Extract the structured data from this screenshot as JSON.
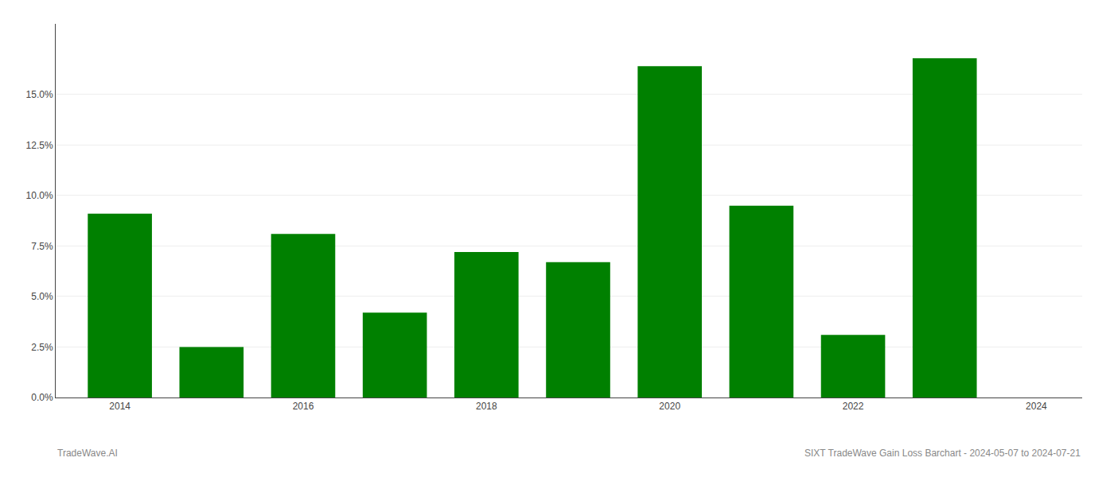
{
  "chart_data": {
    "type": "bar",
    "x": [
      2014,
      2015,
      2016,
      2017,
      2018,
      2019,
      2020,
      2021,
      2022,
      2023
    ],
    "values": [
      0.091,
      0.025,
      0.081,
      0.042,
      0.072,
      0.067,
      0.164,
      0.095,
      0.031,
      0.168
    ],
    "color": "#008000",
    "xlim": [
      2013.3,
      2024.5
    ],
    "xticks": [
      2014,
      2016,
      2018,
      2020,
      2022,
      2024
    ],
    "ylim": [
      0,
      0.185
    ],
    "yticks": [
      {
        "value": 0.0,
        "label": "0.0%"
      },
      {
        "value": 0.025,
        "label": "2.5%"
      },
      {
        "value": 0.05,
        "label": "5.0%"
      },
      {
        "value": 0.075,
        "label": "7.5%"
      },
      {
        "value": 0.1,
        "label": "10.0%"
      },
      {
        "value": 0.125,
        "label": "12.5%"
      },
      {
        "value": 0.15,
        "label": "15.0%"
      }
    ],
    "grid": true,
    "annotations": [
      "TradeWave.AI",
      "SIXT TradeWave Gain Loss Barchart - 2024-05-07 to 2024-07-21"
    ]
  }
}
